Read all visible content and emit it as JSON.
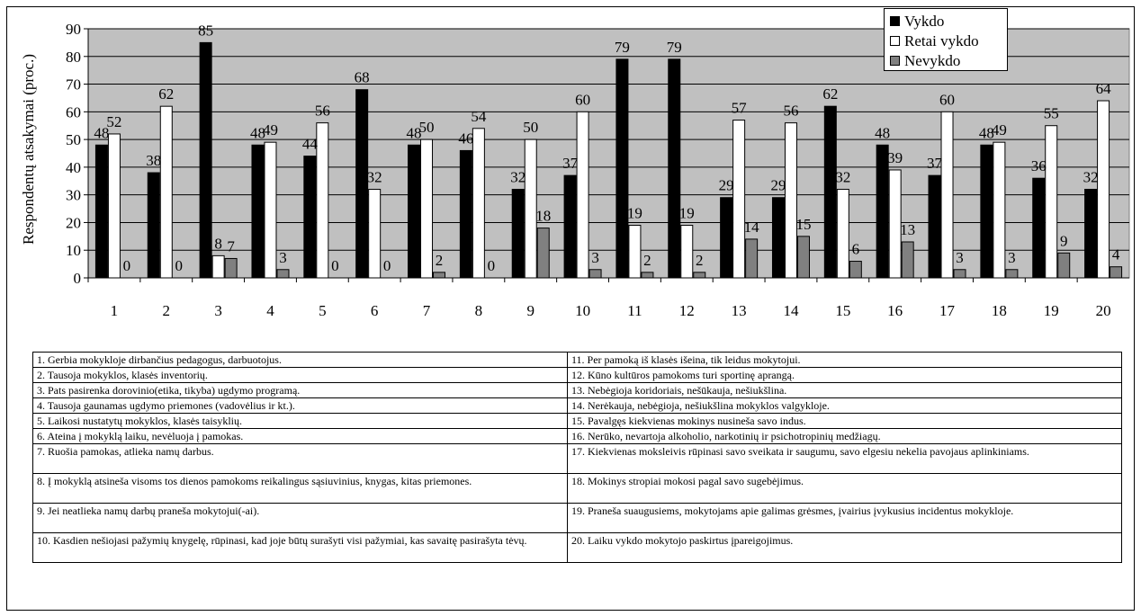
{
  "chart_data": {
    "type": "bar",
    "ylabel": "Respondentų atsakymai (proc.)",
    "xlabel": "",
    "title": "",
    "ylim": [
      0,
      90
    ],
    "yticks": [
      0,
      10,
      20,
      30,
      40,
      50,
      60,
      70,
      80,
      90
    ],
    "grid": true,
    "legend_position": "top-right",
    "categories": [
      "1",
      "2",
      "3",
      "4",
      "5",
      "6",
      "7",
      "8",
      "9",
      "10",
      "11",
      "12",
      "13",
      "14",
      "15",
      "16",
      "17",
      "18",
      "19",
      "20"
    ],
    "series": [
      {
        "name": "Vykdo",
        "color": "#000000",
        "values": [
          48,
          38,
          85,
          48,
          44,
          68,
          48,
          46,
          32,
          37,
          79,
          79,
          29,
          29,
          62,
          48,
          37,
          48,
          36,
          32
        ]
      },
      {
        "name": "Retai vykdo",
        "color": "#ffffff",
        "values": [
          52,
          62,
          8,
          49,
          56,
          32,
          50,
          54,
          50,
          60,
          19,
          19,
          57,
          56,
          32,
          39,
          60,
          49,
          55,
          64
        ]
      },
      {
        "name": "Nevykdo",
        "color": "#808080",
        "values": [
          0,
          0,
          7,
          3,
          0,
          0,
          2,
          0,
          18,
          3,
          2,
          2,
          14,
          15,
          6,
          13,
          3,
          3,
          9,
          4
        ]
      }
    ]
  },
  "notes": {
    "left": [
      "1.   Gerbia mokykloje dirbančius pedagogus, darbuotojus.",
      "2.   Tausoja mokyklos, klasės inventorių.",
      "3.   Pats pasirenka dorovinio(etika, tikyba) ugdymo programą.",
      "4.   Tausoja gaunamas ugdymo priemones (vadovėlius ir kt.).",
      "5.   Laikosi nustatytų mokyklos, klasės taisyklių.",
      "6.   Ateina į mokyklą laiku, nevėluoja į pamokas.",
      "7.   Ruošia pamokas, atlieka namų darbus.",
      "8.   Į mokyklą  atsineša visoms tos dienos pamokoms reikalingus sąsiuvinius, knygas, kitas priemones.",
      "9.   Jei neatlieka namų darbų praneša mokytojui(-ai).",
      "10.         Kasdien nešiojasi pažymių knygelę, rūpinasi, kad joje būtų surašyti visi pažymiai, kas savaitę pasirašyta tėvų."
    ],
    "right": [
      "11.   Per pamoką iš klasės išeina, tik leidus mokytojui.",
      "12.   Kūno kultūros pamokoms turi sportinę aprangą.",
      "13.   Nebėgioja koridoriais, nešūkauja, nešiukšlina.",
      "14.   Nerėkauja, nebėgioja, nešiukšlina mokyklos valgykloje.",
      "15.   Pavalgęs kiekvienas mokinys nusineša savo indus.",
      "16.   Nerūko, nevartoja alkoholio, narkotinių ir psichotropinių medžiagų.",
      "17. Kiekvienas moksleivis rūpinasi savo sveikata ir saugumu, savo elgesiu nekelia pavojaus aplinkiniams.",
      "18. Mokinys stropiai mokosi pagal savo sugebėjimus.",
      "19. Praneša suaugusiems, mokytojams apie galimas grėsmes, įvairius įvykusius incidentus mokykloje.",
      "20. Laiku vykdo mokytojo paskirtus įpareigojimus."
    ]
  }
}
